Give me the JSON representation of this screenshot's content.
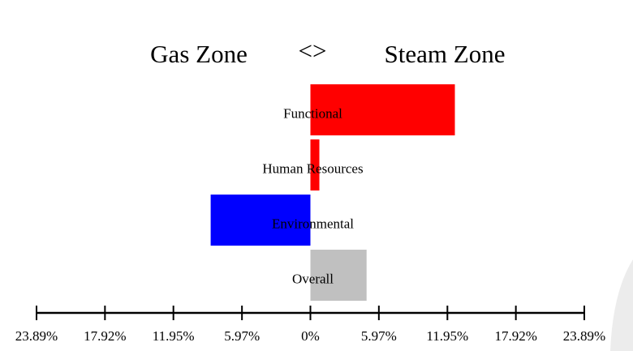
{
  "chart_data": {
    "type": "bar",
    "orientation": "horizontal",
    "title_left": "Gas Zone",
    "title_middle": "<>",
    "title_right": "Steam Zone",
    "categories": [
      "Functional",
      "Human Resources",
      "Environmental",
      "Overall"
    ],
    "values": [
      12.6,
      0.78,
      -8.7,
      4.9
    ],
    "colors": [
      "#ff0000",
      "#ff0000",
      "#0000ff",
      "#c0c0c0"
    ],
    "xlim": [
      -23.89,
      23.89
    ],
    "xticks": [
      {
        "value": -23.89,
        "label": "23.89%"
      },
      {
        "value": -17.92,
        "label": "17.92%"
      },
      {
        "value": -11.95,
        "label": "11.95%"
      },
      {
        "value": -5.97,
        "label": "5.97%"
      },
      {
        "value": 0,
        "label": "0%"
      },
      {
        "value": 5.97,
        "label": "5.97%"
      },
      {
        "value": 11.95,
        "label": "11.95%"
      },
      {
        "value": 17.92,
        "label": "17.92%"
      },
      {
        "value": 23.89,
        "label": "23.89%"
      }
    ],
    "grid": false
  }
}
